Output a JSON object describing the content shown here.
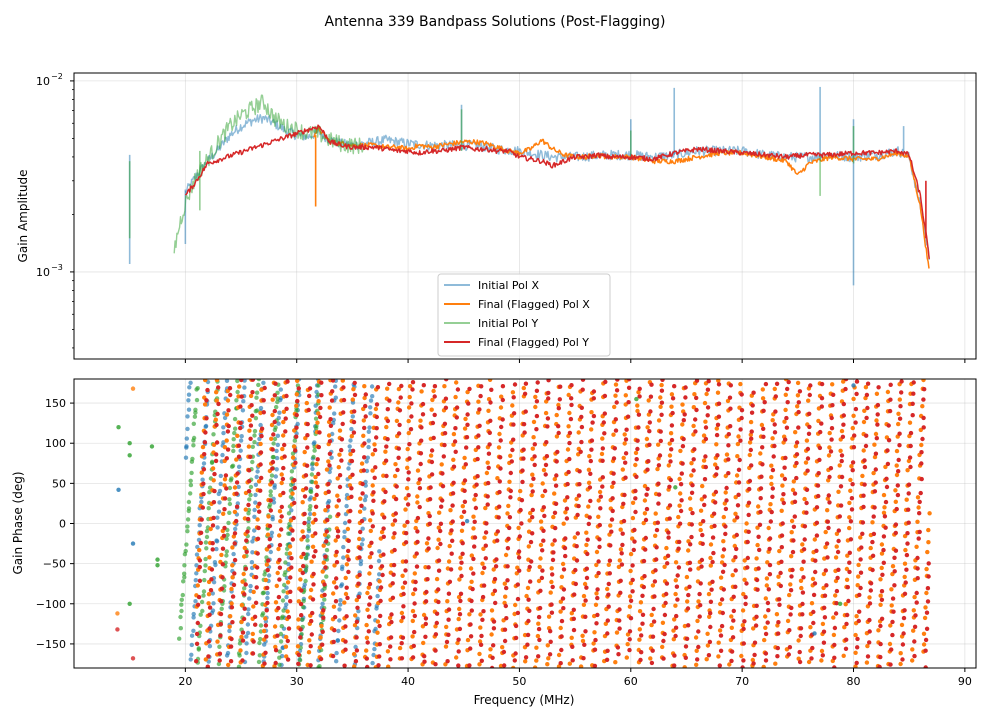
{
  "figure_title": "Antenna 339 Bandpass Solutions (Post-Flagging)",
  "colors": {
    "pol_x_initial": "#1f77b4",
    "pol_x_final": "#ff7f0e",
    "pol_y_initial": "#2ca02c",
    "pol_y_final": "#d62728"
  },
  "chart_data": [
    {
      "type": "line",
      "ylabel": "Gain Amplitude",
      "yscale": "log",
      "xlim": [
        10,
        91
      ],
      "ylim": [
        0.00035,
        0.011
      ],
      "y_ticks": [
        {
          "value": 0.001,
          "label": "10",
          "exp": "−3"
        },
        {
          "value": 0.01,
          "label": "10",
          "exp": "−2"
        }
      ],
      "legend": [
        "Initial Pol X",
        "Final (Flagged) Pol X",
        "Initial Pol Y",
        "Final (Flagged) Pol Y"
      ],
      "series": [
        {
          "name": "Initial Pol X",
          "x": [
            20,
            21,
            22,
            23,
            24,
            25,
            26,
            27,
            28,
            29,
            30,
            31,
            32,
            33,
            34,
            35,
            36,
            37,
            38,
            39,
            40,
            42,
            44,
            46,
            48,
            50,
            52,
            53,
            55,
            58,
            60,
            62,
            64,
            66,
            68,
            70,
            72,
            74,
            75,
            76,
            78,
            80,
            82,
            84,
            85,
            86,
            86.8
          ],
          "y": [
            0.0026,
            0.0032,
            0.0038,
            0.0044,
            0.0052,
            0.0058,
            0.0062,
            0.0064,
            0.006,
            0.0055,
            0.0052,
            0.0051,
            0.0054,
            0.0049,
            0.0047,
            0.0046,
            0.0047,
            0.0048,
            0.0049,
            0.0048,
            0.0047,
            0.0046,
            0.0046,
            0.0046,
            0.0044,
            0.0043,
            0.0041,
            0.004,
            0.004,
            0.0041,
            0.0041,
            0.004,
            0.0041,
            0.0043,
            0.0043,
            0.0043,
            0.0041,
            0.004,
            0.004,
            0.004,
            0.0041,
            0.004,
            0.0041,
            0.0043,
            0.004,
            0.0022,
            0.0012
          ]
        },
        {
          "name": "Final (Flagged) Pol X",
          "x": [
            31.5,
            32,
            33,
            34,
            35,
            36,
            37,
            38,
            39,
            40,
            41,
            42,
            43,
            44,
            45,
            46,
            47,
            48,
            49,
            50,
            51,
            52,
            53,
            54,
            55,
            56,
            57,
            58,
            59,
            60,
            62,
            64,
            66,
            68,
            70,
            72,
            74,
            75,
            76,
            78,
            80,
            82,
            84,
            85,
            86,
            86.8
          ],
          "y": [
            0.0052,
            0.0056,
            0.0048,
            0.0047,
            0.0046,
            0.0046,
            0.0046,
            0.0045,
            0.0045,
            0.0044,
            0.0046,
            0.0045,
            0.0046,
            0.0047,
            0.0048,
            0.0048,
            0.0047,
            0.0045,
            0.0043,
            0.0042,
            0.0044,
            0.0049,
            0.0044,
            0.0041,
            0.004,
            0.004,
            0.0041,
            0.004,
            0.004,
            0.004,
            0.0038,
            0.0038,
            0.004,
            0.0042,
            0.0042,
            0.004,
            0.0038,
            0.0032,
            0.0037,
            0.004,
            0.0039,
            0.0039,
            0.0042,
            0.004,
            0.0022,
            0.001
          ]
        },
        {
          "name": "Initial Pol Y",
          "x": [
            19,
            19.5,
            20,
            21,
            22,
            23,
            24,
            25,
            26,
            27,
            28,
            29,
            30,
            31,
            32,
            33,
            34,
            35,
            36
          ],
          "y": [
            0.0013,
            0.0018,
            0.0023,
            0.0032,
            0.0039,
            0.0048,
            0.0058,
            0.0066,
            0.0072,
            0.0078,
            0.0064,
            0.0058,
            0.0056,
            0.0053,
            0.0053,
            0.0049,
            0.0047,
            0.0046,
            0.0046
          ]
        },
        {
          "name": "Final (Flagged) Pol Y",
          "x": [
            20,
            21,
            22,
            32,
            33,
            34,
            35,
            36,
            37,
            38,
            39,
            40,
            41,
            42,
            43,
            44,
            45,
            46,
            47,
            48,
            49,
            50,
            51,
            52,
            53,
            54,
            55,
            56,
            57,
            58,
            59,
            60,
            62,
            64,
            66,
            68,
            70,
            72,
            74,
            76,
            78,
            80,
            82,
            84,
            85,
            86,
            86.8
          ],
          "y": [
            0.0025,
            0.003,
            0.0037,
            0.0058,
            0.0048,
            0.0046,
            0.0045,
            0.0045,
            0.0045,
            0.0044,
            0.0043,
            0.0043,
            0.0042,
            0.0043,
            0.0043,
            0.0044,
            0.0045,
            0.0044,
            0.0044,
            0.0043,
            0.0043,
            0.004,
            0.0039,
            0.0038,
            0.0036,
            0.0038,
            0.004,
            0.004,
            0.0041,
            0.004,
            0.004,
            0.004,
            0.0039,
            0.0042,
            0.0044,
            0.0043,
            0.0042,
            0.0041,
            0.004,
            0.0041,
            0.0041,
            0.0042,
            0.0042,
            0.0043,
            0.0041,
            0.0025,
            0.0012
          ]
        }
      ]
    },
    {
      "type": "scatter",
      "xlabel": "Frequency (MHz)",
      "ylabel": "Gain Phase (deg)",
      "xlim": [
        10,
        91
      ],
      "ylim": [
        -180,
        180
      ],
      "x_ticks": [
        20,
        30,
        40,
        50,
        60,
        70,
        80,
        90
      ],
      "y_ticks": [
        -150,
        -100,
        -50,
        0,
        50,
        100,
        150
      ],
      "series": [
        {
          "name": "Initial Pol X",
          "slope_deg_per_mhz": 100,
          "x_range": [
            20,
            37.5
          ],
          "offset": 0
        },
        {
          "name": "Final (Flagged) Pol X",
          "slope_deg_per_mhz": 160,
          "x_range": [
            21,
            86.8
          ],
          "offset": 60
        },
        {
          "name": "Initial Pol Y",
          "slope_deg_per_mhz": 90,
          "x_range": [
            19.5,
            33
          ],
          "offset": -40
        },
        {
          "name": "Final (Flagged) Pol Y",
          "slope_deg_per_mhz": 160,
          "x_range": [
            21,
            86.8
          ],
          "offset": 0
        }
      ]
    }
  ]
}
